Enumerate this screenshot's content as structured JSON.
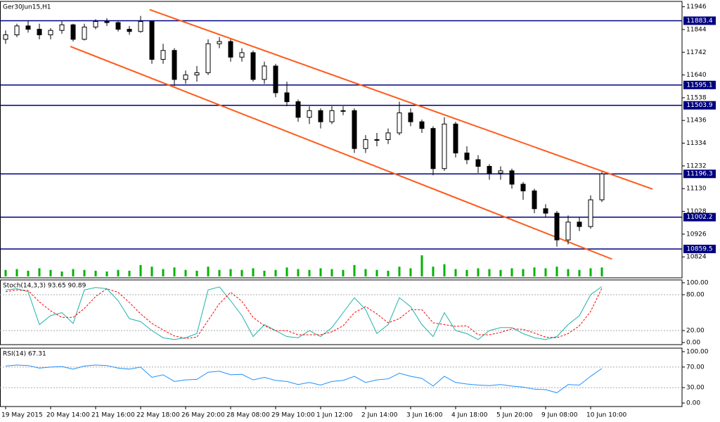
{
  "chart_data": [
    {
      "type": "candlestick",
      "title": "Ger30Jun15,H1",
      "ohlc": [
        [
          11800,
          11840,
          11780,
          11820
        ],
        [
          11820,
          11870,
          11810,
          11860
        ],
        [
          11860,
          11885,
          11830,
          11845
        ],
        [
          11845,
          11870,
          11800,
          11820
        ],
        [
          11820,
          11850,
          11800,
          11840
        ],
        [
          11840,
          11880,
          11825,
          11865
        ],
        [
          11865,
          11870,
          11790,
          11800
        ],
        [
          11800,
          11870,
          11795,
          11855
        ],
        [
          11855,
          11890,
          11845,
          11880
        ],
        [
          11880,
          11895,
          11860,
          11875
        ],
        [
          11875,
          11880,
          11835,
          11845
        ],
        [
          11845,
          11860,
          11820,
          11835
        ],
        [
          11835,
          11905,
          11830,
          11880
        ],
        [
          11880,
          11885,
          11690,
          11710
        ],
        [
          11710,
          11780,
          11690,
          11750
        ],
        [
          11750,
          11760,
          11590,
          11620
        ],
        [
          11620,
          11660,
          11600,
          11640
        ],
        [
          11640,
          11680,
          11610,
          11650
        ],
        [
          11650,
          11800,
          11640,
          11780
        ],
        [
          11780,
          11810,
          11760,
          11790
        ],
        [
          11790,
          11800,
          11700,
          11720
        ],
        [
          11720,
          11760,
          11700,
          11740
        ],
        [
          11740,
          11750,
          11610,
          11620
        ],
        [
          11620,
          11700,
          11600,
          11680
        ],
        [
          11680,
          11690,
          11540,
          11560
        ],
        [
          11560,
          11610,
          11500,
          11520
        ],
        [
          11520,
          11530,
          11430,
          11450
        ],
        [
          11450,
          11500,
          11420,
          11480
        ],
        [
          11480,
          11490,
          11400,
          11430
        ],
        [
          11430,
          11500,
          11420,
          11480
        ],
        [
          11480,
          11500,
          11460,
          11480
        ],
        [
          11480,
          11490,
          11290,
          11310
        ],
        [
          11310,
          11370,
          11290,
          11350
        ],
        [
          11350,
          11380,
          11320,
          11350
        ],
        [
          11350,
          11400,
          11330,
          11380
        ],
        [
          11380,
          11520,
          11370,
          11470
        ],
        [
          11470,
          11490,
          11410,
          11430
        ],
        [
          11430,
          11440,
          11380,
          11400
        ],
        [
          11400,
          11410,
          11190,
          11220
        ],
        [
          11220,
          11450,
          11210,
          11420
        ],
        [
          11420,
          11430,
          11270,
          11290
        ],
        [
          11290,
          11320,
          11240,
          11260
        ],
        [
          11260,
          11280,
          11200,
          11230
        ],
        [
          11230,
          11240,
          11170,
          11200
        ],
        [
          11200,
          11230,
          11170,
          11210
        ],
        [
          11210,
          11220,
          11130,
          11150
        ],
        [
          11150,
          11160,
          11080,
          11120
        ],
        [
          11120,
          11130,
          11020,
          11040
        ],
        [
          11040,
          11060,
          11000,
          11020
        ],
        [
          11020,
          11030,
          10870,
          10900
        ],
        [
          10900,
          11010,
          10880,
          10980
        ],
        [
          10980,
          11000,
          10940,
          10960
        ],
        [
          10960,
          11100,
          10950,
          11080
        ],
        [
          11080,
          11205,
          11070,
          11196
        ]
      ],
      "volume": {
        "color": "#00b400",
        "values": [
          8,
          9,
          7,
          10,
          8,
          6,
          9,
          8,
          7,
          6,
          8,
          7,
          14,
          12,
          9,
          11,
          8,
          7,
          12,
          8,
          9,
          8,
          10,
          7,
          8,
          11,
          9,
          8,
          10,
          9,
          8,
          14,
          9,
          8,
          7,
          12,
          10,
          26,
          12,
          15,
          9,
          8,
          10,
          9,
          8,
          10,
          9,
          11,
          10,
          12,
          9,
          8,
          10,
          11
        ]
      },
      "ylim": [
        10730,
        11970
      ],
      "yticks": [
        11946,
        11844,
        11742,
        11640,
        11538,
        11436,
        11334,
        11232,
        11130,
        11028,
        10926,
        10824
      ],
      "levels": [
        11883.4,
        11595.1,
        11503.9,
        11196.3,
        11002.2,
        10859.5
      ],
      "level_color": "#000080",
      "channel": [
        {
          "x": [
            12.8,
            57.5
          ],
          "values": [
            11933,
            11128
          ]
        },
        {
          "x": [
            5.75,
            53.9
          ],
          "values": [
            11768,
            10814
          ]
        }
      ],
      "channel_color": "#ff5a1a"
    },
    {
      "type": "line",
      "title": "Stoch(14,3,3) 93.65 90.89",
      "series": [
        {
          "color": "#20b2aa",
          "values": [
            88,
            90,
            85,
            30,
            45,
            50,
            32,
            88,
            92,
            90,
            70,
            40,
            35,
            20,
            8,
            5,
            8,
            15,
            88,
            93,
            70,
            45,
            10,
            30,
            20,
            10,
            8,
            20,
            10,
            25,
            50,
            75,
            55,
            15,
            30,
            75,
            60,
            30,
            10,
            50,
            20,
            15,
            5,
            20,
            25,
            25,
            15,
            8,
            5,
            10,
            30,
            45,
            80,
            93.65
          ]
        },
        {
          "color": "#ff0000",
          "dashed": true,
          "values": [
            85,
            88,
            87,
            68,
            53,
            42,
            42,
            57,
            77,
            90,
            84,
            67,
            48,
            32,
            21,
            11,
            7,
            9,
            37,
            65,
            84,
            69,
            42,
            28,
            20,
            20,
            13,
            13,
            13,
            18,
            28,
            50,
            60,
            48,
            33,
            40,
            55,
            55,
            33,
            30,
            27,
            28,
            13,
            13,
            17,
            23,
            22,
            16,
            9,
            8,
            15,
            28,
            52,
            90.89
          ]
        }
      ],
      "ylim": [
        -3.5,
        104.7
      ],
      "yticks": [
        {
          "value": 100,
          "label": "100.00"
        },
        {
          "value": 80,
          "label": "80.00"
        },
        {
          "value": 20,
          "label": "20.00"
        },
        {
          "value": 0,
          "label": "0.00"
        }
      ],
      "levels": [
        80,
        20
      ]
    },
    {
      "type": "line",
      "title": "RSI(14) 67.31",
      "series": [
        {
          "color": "#1e90ff",
          "values": [
            72,
            74,
            73,
            68,
            70,
            71,
            66,
            72,
            74,
            73,
            68,
            66,
            70,
            50,
            55,
            42,
            45,
            46,
            60,
            62,
            55,
            56,
            45,
            50,
            44,
            42,
            36,
            40,
            35,
            42,
            44,
            52,
            40,
            45,
            47,
            58,
            52,
            48,
            33,
            52,
            40,
            37,
            35,
            34,
            36,
            33,
            31,
            27,
            26,
            20,
            36,
            35,
            52,
            67.31
          ]
        }
      ],
      "ylim": [
        -6.8,
        106.8
      ],
      "yticks": [
        {
          "value": 100,
          "label": "100.00"
        },
        {
          "value": 70,
          "label": "70.00"
        },
        {
          "value": 30,
          "label": "30.00"
        },
        {
          "value": 0,
          "label": "0.00"
        }
      ],
      "levels": [
        70,
        30
      ],
      "categories": [
        "19 May 2015",
        null,
        null,
        null,
        "20 May 14:00",
        null,
        null,
        null,
        "21 May 16:00",
        null,
        null,
        null,
        "22 May 18:00",
        null,
        null,
        null,
        "26 May 20:00",
        null,
        null,
        null,
        "28 May 08:00",
        null,
        null,
        null,
        "29 May 10:00",
        null,
        null,
        null,
        "1 Jun 12:00",
        null,
        null,
        null,
        "2 Jun 14:00",
        null,
        null,
        null,
        "3 Jun 16:00",
        null,
        null,
        null,
        "4 Jun 18:00",
        null,
        null,
        null,
        "5 Jun 20:00",
        null,
        null,
        null,
        "9 Jun 08:00",
        null,
        null,
        null,
        "10 Jun 10:00",
        null
      ]
    }
  ]
}
